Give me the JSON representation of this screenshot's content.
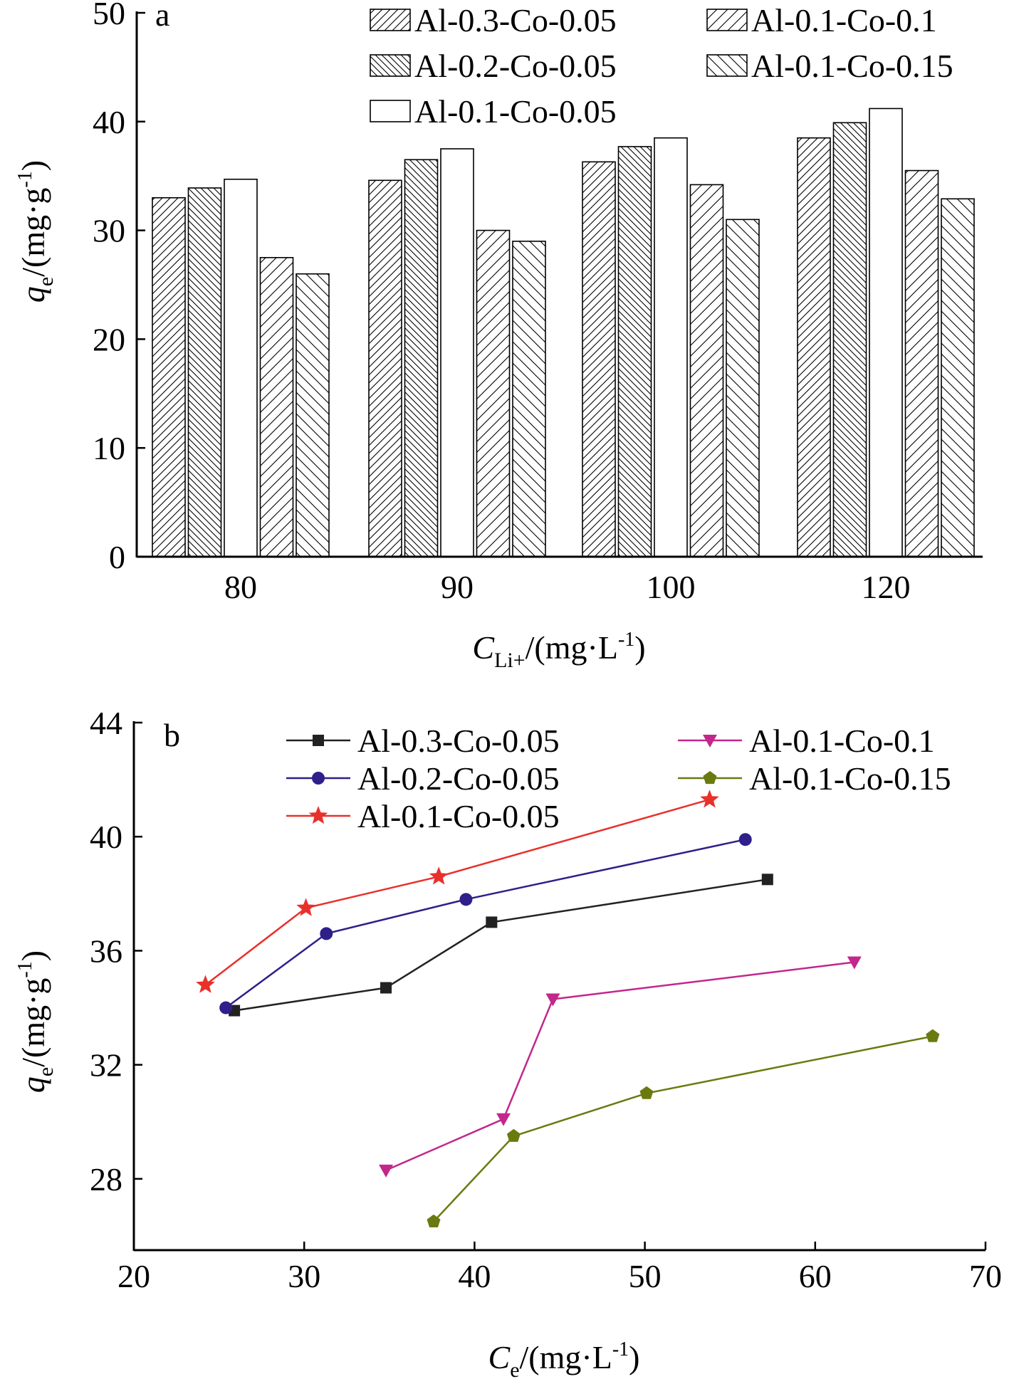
{
  "chart_data": [
    {
      "type": "bar",
      "panel_label": "a",
      "xlabel": {
        "main": "C",
        "sub": "Li+",
        "tail": "/(mg·L",
        "sup": "-1",
        "end": ")"
      },
      "ylabel": {
        "main": "q",
        "sub": "e",
        "tail": "/(mg·g",
        "sup": "-1",
        "end": ")"
      },
      "ylim": [
        0,
        50
      ],
      "yticks": [
        "0",
        "10",
        "20",
        "30",
        "40",
        "50"
      ],
      "categories": [
        "80",
        "90",
        "100",
        "120"
      ],
      "legend_position": "top-right",
      "series": [
        {
          "name": "Al-0.3-Co-0.05",
          "pattern": "diag-right",
          "values": [
            33.0,
            34.6,
            36.3,
            38.5
          ]
        },
        {
          "name": "Al-0.2-Co-0.05",
          "pattern": "diag-left-dense",
          "values": [
            33.9,
            36.5,
            37.7,
            39.9
          ]
        },
        {
          "name": "Al-0.1-Co-0.05",
          "pattern": "none",
          "values": [
            34.7,
            37.5,
            38.5,
            41.2
          ]
        },
        {
          "name": "Al-0.1-Co-0.1",
          "pattern": "diag-right-wide",
          "values": [
            27.5,
            30.0,
            34.2,
            35.5
          ]
        },
        {
          "name": "Al-0.1-Co-0.15",
          "pattern": "diag-left-wide",
          "values": [
            26.0,
            29.0,
            31.0,
            32.9
          ]
        }
      ]
    },
    {
      "type": "line",
      "panel_label": "b",
      "xlabel": {
        "main": "C",
        "sub": "e",
        "tail": "/(mg·L",
        "sup": "-1",
        "end": ")"
      },
      "ylabel": {
        "main": "q",
        "sub": "e",
        "tail": "/(mg·g",
        "sup": "-1",
        "end": ")"
      },
      "xlim": [
        20,
        70
      ],
      "ylim": [
        25.5,
        44
      ],
      "xticks": [
        "20",
        "30",
        "40",
        "50",
        "60",
        "70"
      ],
      "yticks": [
        "28",
        "32",
        "36",
        "40",
        "44"
      ],
      "legend_position": "top",
      "series": [
        {
          "name": "Al-0.3-Co-0.05",
          "color": "#222222",
          "marker": "square",
          "points": [
            [
              25.9,
              33.9
            ],
            [
              34.8,
              34.7
            ],
            [
              41.0,
              37.0
            ],
            [
              57.2,
              38.5
            ]
          ]
        },
        {
          "name": "Al-0.2-Co-0.05",
          "color": "#2e1f8a",
          "marker": "circle",
          "points": [
            [
              25.4,
              34.0
            ],
            [
              31.3,
              36.6
            ],
            [
              39.5,
              37.8
            ],
            [
              55.9,
              39.9
            ]
          ]
        },
        {
          "name": "Al-0.1-Co-0.05",
          "color": "#e8312b",
          "marker": "star",
          "points": [
            [
              24.2,
              34.8
            ],
            [
              30.1,
              37.5
            ],
            [
              37.9,
              38.6
            ],
            [
              53.8,
              41.3
            ]
          ]
        },
        {
          "name": "Al-0.1-Co-0.1",
          "color": "#c2278c",
          "marker": "triangle-down",
          "points": [
            [
              34.8,
              28.3
            ],
            [
              41.7,
              30.1
            ],
            [
              44.6,
              34.3
            ],
            [
              62.3,
              35.6
            ]
          ]
        },
        {
          "name": "Al-0.1-Co-0.15",
          "color": "#6b7a0e",
          "marker": "pentagon",
          "points": [
            [
              37.6,
              26.5
            ],
            [
              42.3,
              29.5
            ],
            [
              50.1,
              31.0
            ],
            [
              66.9,
              33.0
            ]
          ]
        }
      ]
    }
  ]
}
